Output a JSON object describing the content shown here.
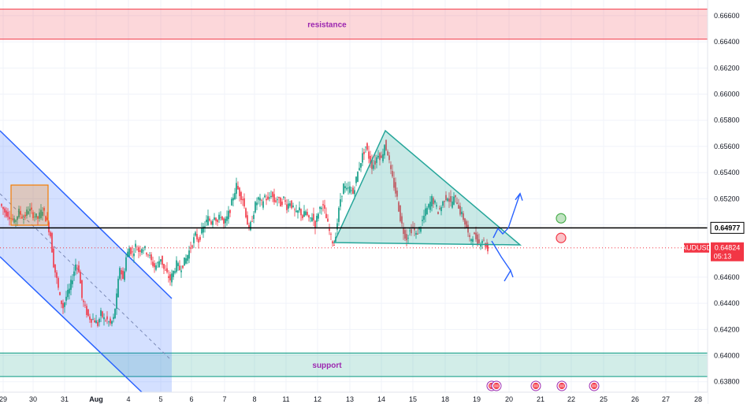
{
  "chart_data": {
    "type": "candlestick",
    "symbol": "AUDUSD",
    "last_price": "0.64824",
    "countdown": "05:13",
    "line_price_label": "0.64977",
    "x_tick_labels": [
      "29",
      "30",
      "31",
      "Aug",
      "4",
      "5",
      "6",
      "7",
      "8",
      "11",
      "12",
      "13",
      "14",
      "15",
      "18",
      "19",
      "20",
      "21",
      "22",
      "25",
      "26",
      "27",
      "28"
    ],
    "y_tick_labels": [
      "0.66600",
      "0.66400",
      "0.66200",
      "0.66000",
      "0.65800",
      "0.65600",
      "0.65400",
      "0.65200",
      "0.65000",
      "0.64600",
      "0.64400",
      "0.64200",
      "0.64000",
      "0.63800"
    ],
    "ylim": [
      0.6372,
      0.6672
    ],
    "horizontal_line": 0.64977,
    "zones": [
      {
        "label": "resistance",
        "from": 0.6642,
        "to": 0.6665,
        "color": "#f23645"
      },
      {
        "label": "support",
        "from": 0.6384,
        "to": 0.6402,
        "color": "#089981"
      }
    ],
    "price_path": [
      [
        0,
        0.6516
      ],
      [
        6,
        0.651
      ],
      [
        12,
        0.6507
      ],
      [
        18,
        0.6502
      ],
      [
        24,
        0.651
      ],
      [
        30,
        0.6505
      ],
      [
        36,
        0.6512
      ],
      [
        42,
        0.6508
      ],
      [
        48,
        0.6505
      ],
      [
        54,
        0.6512
      ],
      [
        60,
        0.6502
      ],
      [
        64,
        0.6492
      ],
      [
        68,
        0.647
      ],
      [
        72,
        0.6458
      ],
      [
        76,
        0.6444
      ],
      [
        80,
        0.6437
      ],
      [
        84,
        0.6445
      ],
      [
        88,
        0.645
      ],
      [
        92,
        0.646
      ],
      [
        96,
        0.647
      ],
      [
        100,
        0.6466
      ],
      [
        104,
        0.6444
      ],
      [
        108,
        0.6436
      ],
      [
        112,
        0.643
      ],
      [
        116,
        0.6428
      ],
      [
        120,
        0.6427
      ],
      [
        124,
        0.6424
      ],
      [
        128,
        0.6432
      ],
      [
        132,
        0.6428
      ],
      [
        136,
        0.6427
      ],
      [
        140,
        0.6424
      ],
      [
        144,
        0.6428
      ],
      [
        148,
        0.6445
      ],
      [
        152,
        0.6468
      ],
      [
        156,
        0.6458
      ],
      [
        160,
        0.6475
      ],
      [
        164,
        0.6482
      ],
      [
        168,
        0.6478
      ],
      [
        172,
        0.6484
      ],
      [
        176,
        0.648
      ],
      [
        180,
        0.6483
      ],
      [
        184,
        0.6481
      ],
      [
        188,
        0.6478
      ],
      [
        192,
        0.6472
      ],
      [
        196,
        0.6468
      ],
      [
        200,
        0.647
      ],
      [
        204,
        0.6475
      ],
      [
        208,
        0.6466
      ],
      [
        212,
        0.6462
      ],
      [
        216,
        0.6458
      ],
      [
        220,
        0.6464
      ],
      [
        224,
        0.647
      ],
      [
        228,
        0.6466
      ],
      [
        232,
        0.647
      ],
      [
        236,
        0.6474
      ],
      [
        240,
        0.648
      ],
      [
        244,
        0.6486
      ],
      [
        248,
        0.6492
      ],
      [
        252,
        0.6488
      ],
      [
        256,
        0.6495
      ],
      [
        260,
        0.65
      ],
      [
        264,
        0.6505
      ],
      [
        268,
        0.6502
      ],
      [
        272,
        0.6508
      ],
      [
        276,
        0.6502
      ],
      [
        280,
        0.6508
      ],
      [
        284,
        0.65
      ],
      [
        288,
        0.6505
      ],
      [
        292,
        0.6512
      ],
      [
        296,
        0.6522
      ],
      [
        300,
        0.653
      ],
      [
        304,
        0.6524
      ],
      [
        308,
        0.652
      ],
      [
        312,
        0.6508
      ],
      [
        316,
        0.6495
      ],
      [
        320,
        0.6505
      ],
      [
        324,
        0.6515
      ],
      [
        328,
        0.652
      ],
      [
        332,
        0.6516
      ],
      [
        336,
        0.6522
      ],
      [
        340,
        0.6518
      ],
      [
        344,
        0.6524
      ],
      [
        348,
        0.6518
      ],
      [
        352,
        0.652
      ],
      [
        356,
        0.6516
      ],
      [
        360,
        0.652
      ],
      [
        364,
        0.6514
      ],
      [
        368,
        0.6518
      ],
      [
        372,
        0.6512
      ],
      [
        376,
        0.6508
      ],
      [
        380,
        0.6512
      ],
      [
        384,
        0.6506
      ],
      [
        388,
        0.651
      ],
      [
        392,
        0.6503
      ],
      [
        396,
        0.6507
      ],
      [
        400,
        0.65
      ],
      [
        404,
        0.651
      ],
      [
        408,
        0.6516
      ],
      [
        412,
        0.651
      ],
      [
        416,
        0.65
      ],
      [
        420,
        0.649
      ],
      [
        424,
        0.6485
      ],
      [
        428,
        0.6502
      ],
      [
        432,
        0.652
      ],
      [
        436,
        0.653
      ],
      [
        440,
        0.6526
      ],
      [
        444,
        0.6528
      ],
      [
        448,
        0.6524
      ],
      [
        452,
        0.6535
      ],
      [
        456,
        0.6545
      ],
      [
        460,
        0.6553
      ],
      [
        464,
        0.656
      ],
      [
        468,
        0.6552
      ],
      [
        472,
        0.6545
      ],
      [
        476,
        0.6548
      ],
      [
        480,
        0.6555
      ],
      [
        484,
        0.655
      ],
      [
        488,
        0.6562
      ],
      [
        492,
        0.6555
      ],
      [
        496,
        0.654
      ],
      [
        500,
        0.653
      ],
      [
        504,
        0.652
      ],
      [
        508,
        0.6505
      ],
      [
        512,
        0.6495
      ],
      [
        516,
        0.649
      ],
      [
        520,
        0.6495
      ],
      [
        524,
        0.6498
      ],
      [
        528,
        0.6492
      ],
      [
        532,
        0.6497
      ],
      [
        536,
        0.6503
      ],
      [
        540,
        0.651
      ],
      [
        544,
        0.6514
      ],
      [
        548,
        0.652
      ],
      [
        552,
        0.6516
      ],
      [
        556,
        0.651
      ],
      [
        560,
        0.6514
      ],
      [
        564,
        0.652
      ],
      [
        568,
        0.6522
      ],
      [
        572,
        0.6516
      ],
      [
        576,
        0.652
      ],
      [
        580,
        0.6518
      ],
      [
        584,
        0.651
      ],
      [
        588,
        0.6505
      ],
      [
        592,
        0.6498
      ],
      [
        596,
        0.6488
      ],
      [
        600,
        0.6492
      ],
      [
        604,
        0.649
      ],
      [
        608,
        0.6486
      ],
      [
        612,
        0.6489
      ],
      [
        616,
        0.6485
      ],
      [
        619,
        0.6482
      ]
    ],
    "projection": {
      "up_target": 0.6524,
      "down_target": 0.6465
    },
    "markers": [
      {
        "kind": "target",
        "price": 0.6505,
        "color": "#4caf50"
      },
      {
        "kind": "stop",
        "price": 0.649,
        "color": "#f23645"
      }
    ],
    "colors": {
      "up": "#089981",
      "down": "#f23645",
      "channel": "#2962ff",
      "triangle": "#26a69a",
      "rect": "#f57c00",
      "grid": "#f0f3fa",
      "line": "#000000"
    }
  }
}
